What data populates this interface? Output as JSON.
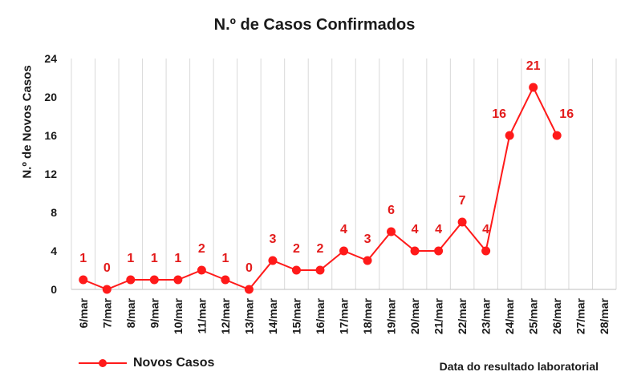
{
  "chart_data": {
    "type": "line",
    "title": "N.º de Casos Confirmados",
    "xlabel": "Data do resultado laboratorial",
    "ylabel": "N.º de Novos Casos",
    "categories": [
      "6/mar",
      "7/mar",
      "8/mar",
      "9/mar",
      "10/mar",
      "11/mar",
      "12/mar",
      "13/mar",
      "14/mar",
      "15/mar",
      "16/mar",
      "17/mar",
      "18/mar",
      "19/mar",
      "20/mar",
      "21/mar",
      "22/mar",
      "23/mar",
      "24/mar",
      "25/mar",
      "26/mar",
      "27/mar",
      "28/mar"
    ],
    "series": [
      {
        "name": "Novos Casos",
        "values": [
          1,
          0,
          1,
          1,
          1,
          2,
          1,
          0,
          3,
          2,
          2,
          4,
          3,
          6,
          4,
          4,
          7,
          4,
          16,
          21,
          16,
          null,
          null
        ]
      }
    ],
    "ylim": [
      0,
      24
    ],
    "yticks": [
      0,
      4,
      8,
      12,
      16,
      20,
      24
    ],
    "grid": "vertical",
    "legend": "bottom-left",
    "line_color": "#ff1a1a",
    "label_color": "#e31b1b"
  }
}
